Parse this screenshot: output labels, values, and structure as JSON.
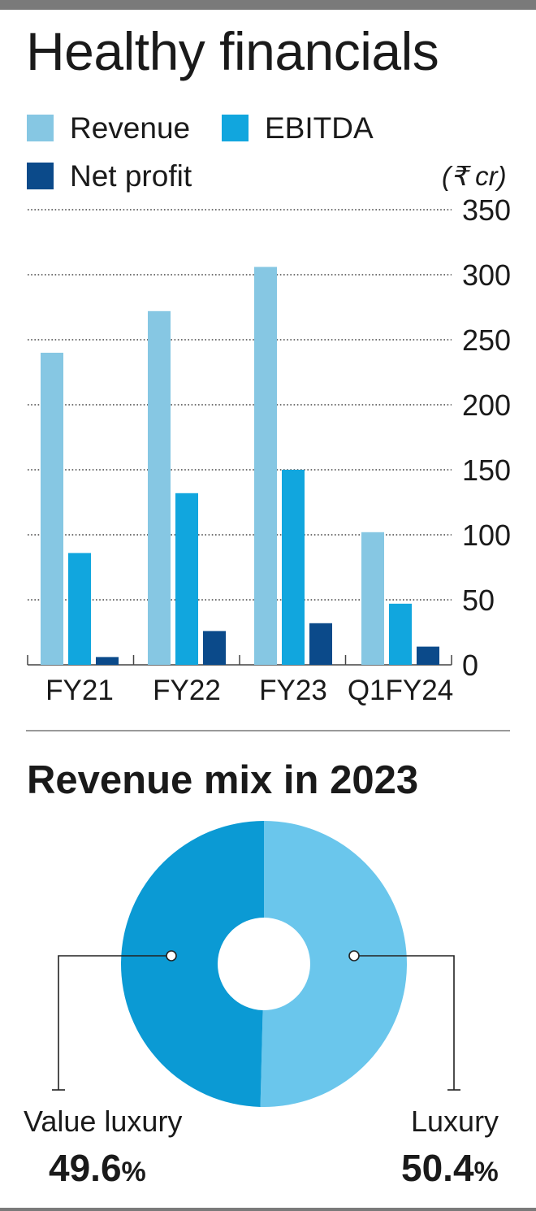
{
  "title": "Healthy financials",
  "unit": "(₹ cr)",
  "chart_data": [
    {
      "type": "bar",
      "categories": [
        "FY21",
        "FY22",
        "FY23",
        "Q1FY24"
      ],
      "series": [
        {
          "name": "Revenue",
          "color": "#86c7e3",
          "values": [
            240,
            272,
            306,
            102
          ]
        },
        {
          "name": "EBITDA",
          "color": "#11a6de",
          "values": [
            86,
            132,
            150,
            47
          ]
        },
        {
          "name": "Net profit",
          "color": "#0b4a8a",
          "values": [
            6,
            26,
            32,
            14
          ]
        }
      ],
      "yticks": [
        0,
        50,
        100,
        150,
        200,
        250,
        300,
        350
      ],
      "ylim": [
        0,
        350
      ],
      "grid": "dotted",
      "legend_position": "top"
    },
    {
      "type": "pie",
      "title": "Revenue mix in 2023",
      "slices": [
        {
          "label": "Luxury",
          "value": 50.4,
          "color": "#6ac6ec"
        },
        {
          "label": "Value luxury",
          "value": 49.6,
          "color": "#0b9ad4"
        }
      ]
    }
  ]
}
